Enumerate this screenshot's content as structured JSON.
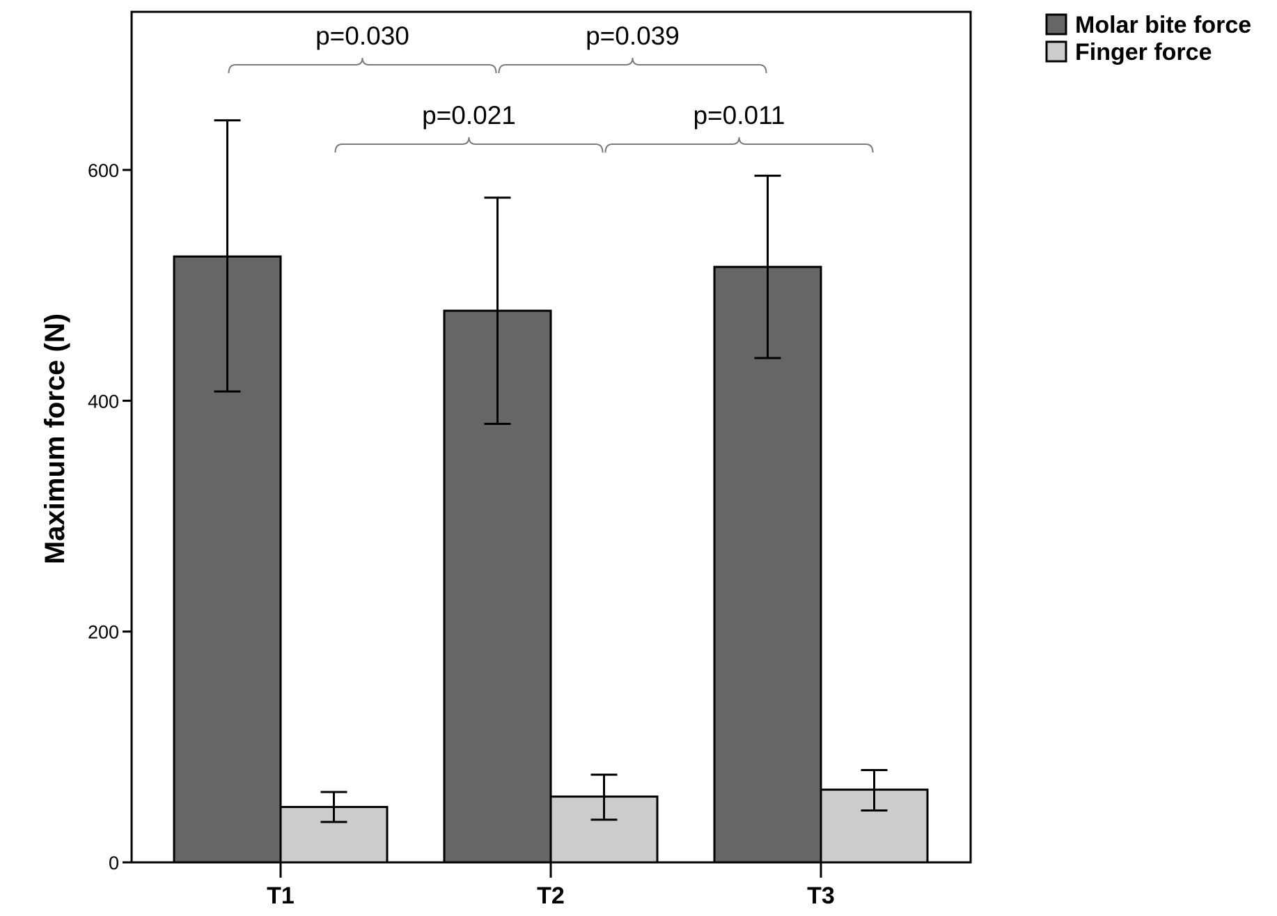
{
  "chart_data": {
    "type": "bar",
    "categories": [
      "T1",
      "T2",
      "T3"
    ],
    "series": [
      {
        "name": "Molar bite force",
        "color": "#666666",
        "values": [
          525,
          478,
          516
        ],
        "error_low": [
          408,
          380,
          437
        ],
        "error_high": [
          643,
          576,
          595
        ]
      },
      {
        "name": "Finger force",
        "color": "#cccccc",
        "values": [
          48,
          57,
          63
        ],
        "error_low": [
          35,
          37,
          45
        ],
        "error_high": [
          61,
          76,
          80
        ]
      }
    ],
    "title": "",
    "xlabel": "",
    "ylabel": "Maximum force (N)",
    "ylim": [
      0,
      737
    ],
    "yticks": [
      0,
      200,
      400,
      600
    ],
    "legend": "top-right outside",
    "grid": false,
    "annotations": [
      {
        "text": "p=0.030",
        "from_category": 0,
        "to_category": 1,
        "series": 0,
        "level": 2
      },
      {
        "text": "p=0.039",
        "from_category": 1,
        "to_category": 2,
        "series": 0,
        "level": 2
      },
      {
        "text": "p=0.021",
        "from_category": 0,
        "to_category": 1,
        "series": 1,
        "level": 1
      },
      {
        "text": "p=0.011",
        "from_category": 1,
        "to_category": 2,
        "series": 1,
        "level": 1
      }
    ]
  }
}
